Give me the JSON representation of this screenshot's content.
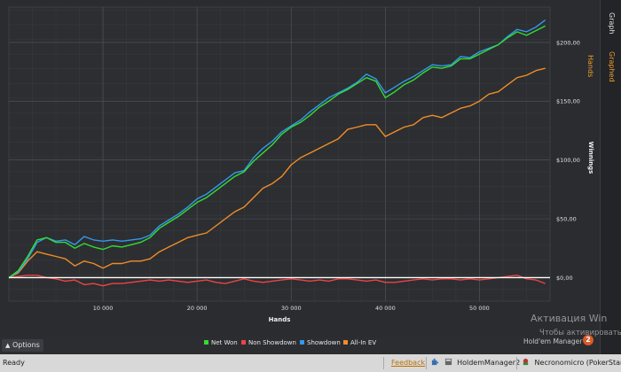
{
  "right_tabs": {
    "graph": "Graph",
    "graphed_hands": "Graphed Hands"
  },
  "options_label": "Options",
  "legend": [
    {
      "label": "Net Won",
      "color": "#33dd33"
    },
    {
      "label": "Non Showdown",
      "color": "#ee4444"
    },
    {
      "label": "Showdown",
      "color": "#3399ee"
    },
    {
      "label": "All-In EV",
      "color": "#f08c28"
    }
  ],
  "watermark": {
    "title": "Активация Win",
    "subtitle": "Чтобы активировать",
    "tooltip": "Hold'em Manager 2",
    "tooltip_badge": "2"
  },
  "status_bar": {
    "ready": "Ready",
    "feedback": "Feedback",
    "app_item": "HoldemManager2",
    "player_item": "Necronomicro (PokerStars)"
  },
  "chart_data": {
    "type": "line",
    "xlabel": "Hands",
    "ylabel": "Winnings",
    "xlim": [
      0,
      57500
    ],
    "ylim": [
      -20,
      230
    ],
    "x_ticks": [
      10000,
      20000,
      30000,
      40000,
      50000
    ],
    "x_tick_labels": [
      "10 000",
      "20 000",
      "30 000",
      "40 000",
      "50 000"
    ],
    "y_ticks": [
      0,
      50,
      100,
      150,
      200
    ],
    "y_tick_labels": [
      "$0,00",
      "$50,00",
      "$100,00",
      "$150,00",
      "$200,00"
    ],
    "grid": true,
    "legend_position": "bottom",
    "series": [
      {
        "name": "Net Won",
        "color": "#33dd33",
        "x": [
          0,
          1000,
          2000,
          3000,
          4000,
          5000,
          6000,
          7000,
          8000,
          9000,
          10000,
          11000,
          12000,
          13000,
          14000,
          15000,
          16000,
          17000,
          18000,
          19000,
          20000,
          21000,
          22000,
          23000,
          24000,
          25000,
          26000,
          27000,
          28000,
          29000,
          30000,
          31000,
          32000,
          33000,
          34000,
          35000,
          36000,
          37000,
          38000,
          39000,
          40000,
          41000,
          42000,
          43000,
          44000,
          45000,
          46000,
          47000,
          48000,
          49000,
          50000,
          51000,
          52000,
          53000,
          54000,
          55000,
          56000,
          57000
        ],
        "y": [
          0,
          6,
          18,
          32,
          34,
          30,
          30,
          25,
          29,
          26,
          24,
          27,
          26,
          28,
          30,
          34,
          42,
          47,
          52,
          58,
          64,
          68,
          74,
          80,
          86,
          90,
          99,
          106,
          113,
          122,
          128,
          132,
          138,
          145,
          150,
          156,
          160,
          165,
          170,
          167,
          153,
          158,
          164,
          168,
          174,
          179,
          178,
          180,
          186,
          186,
          190,
          194,
          198,
          204,
          209,
          206,
          210,
          214
        ]
      },
      {
        "name": "Non Showdown",
        "color": "#ee4444",
        "x": [
          0,
          1000,
          2000,
          3000,
          4000,
          5000,
          6000,
          7000,
          8000,
          9000,
          10000,
          11000,
          12000,
          13000,
          14000,
          15000,
          16000,
          17000,
          18000,
          19000,
          20000,
          21000,
          22000,
          23000,
          24000,
          25000,
          26000,
          27000,
          28000,
          29000,
          30000,
          31000,
          32000,
          33000,
          34000,
          35000,
          36000,
          37000,
          38000,
          39000,
          40000,
          41000,
          42000,
          43000,
          44000,
          45000,
          46000,
          47000,
          48000,
          49000,
          50000,
          51000,
          52000,
          53000,
          54000,
          55000,
          56000,
          57000
        ],
        "y": [
          0,
          1,
          2,
          2,
          0,
          -1,
          -3,
          -2,
          -6,
          -5,
          -7,
          -5,
          -5,
          -4,
          -3,
          -2,
          -3,
          -2,
          -3,
          -4,
          -3,
          -2,
          -4,
          -5,
          -3,
          -1,
          -3,
          -4,
          -3,
          -2,
          -1,
          -2,
          -3,
          -2,
          -3,
          -1,
          -1,
          -2,
          -3,
          -2,
          -4,
          -4,
          -3,
          -2,
          -1,
          -2,
          -1,
          -1,
          -2,
          -1,
          -2,
          -1,
          0,
          1,
          2,
          -1,
          -2,
          -5
        ]
      },
      {
        "name": "Showdown",
        "color": "#3399ee",
        "x": [
          0,
          1000,
          2000,
          3000,
          4000,
          5000,
          6000,
          7000,
          8000,
          9000,
          10000,
          11000,
          12000,
          13000,
          14000,
          15000,
          16000,
          17000,
          18000,
          19000,
          20000,
          21000,
          22000,
          23000,
          24000,
          25000,
          26000,
          27000,
          28000,
          29000,
          30000,
          31000,
          32000,
          33000,
          34000,
          35000,
          36000,
          37000,
          38000,
          39000,
          40000,
          41000,
          42000,
          43000,
          44000,
          45000,
          46000,
          47000,
          48000,
          49000,
          50000,
          51000,
          52000,
          53000,
          54000,
          55000,
          56000,
          57000
        ],
        "y": [
          0,
          5,
          16,
          30,
          34,
          31,
          32,
          28,
          35,
          32,
          31,
          32,
          31,
          32,
          33,
          36,
          44,
          49,
          54,
          60,
          67,
          71,
          77,
          83,
          89,
          91,
          102,
          110,
          116,
          124,
          129,
          134,
          141,
          147,
          153,
          157,
          161,
          166,
          173,
          169,
          157,
          162,
          167,
          171,
          176,
          181,
          180,
          181,
          188,
          187,
          192,
          195,
          198,
          205,
          211,
          209,
          213,
          219
        ]
      },
      {
        "name": "All-In EV",
        "color": "#f08c28",
        "x": [
          0,
          1000,
          2000,
          3000,
          4000,
          5000,
          6000,
          7000,
          8000,
          9000,
          10000,
          11000,
          12000,
          13000,
          14000,
          15000,
          16000,
          17000,
          18000,
          19000,
          20000,
          21000,
          22000,
          23000,
          24000,
          25000,
          26000,
          27000,
          28000,
          29000,
          30000,
          31000,
          32000,
          33000,
          34000,
          35000,
          36000,
          37000,
          38000,
          39000,
          40000,
          41000,
          42000,
          43000,
          44000,
          45000,
          46000,
          47000,
          48000,
          49000,
          50000,
          51000,
          52000,
          53000,
          54000,
          55000,
          56000,
          57000
        ],
        "y": [
          0,
          4,
          14,
          22,
          20,
          18,
          16,
          10,
          14,
          12,
          8,
          12,
          12,
          14,
          14,
          16,
          22,
          26,
          30,
          34,
          36,
          38,
          44,
          50,
          56,
          60,
          68,
          76,
          80,
          86,
          96,
          102,
          106,
          110,
          114,
          118,
          126,
          128,
          130,
          130,
          120,
          124,
          128,
          130,
          136,
          138,
          136,
          140,
          144,
          146,
          150,
          156,
          158,
          164,
          170,
          172,
          176,
          178
        ]
      }
    ]
  }
}
